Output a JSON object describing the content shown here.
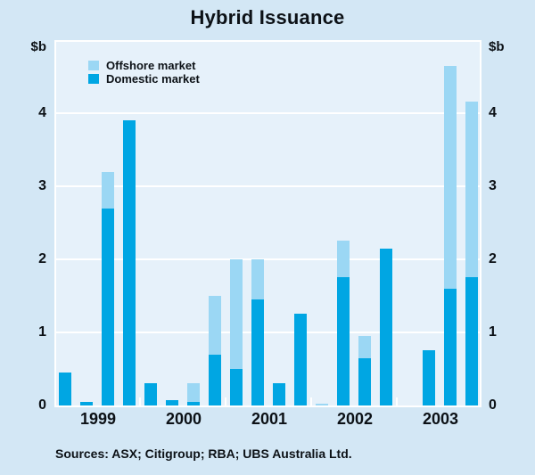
{
  "chart_data": {
    "type": "bar",
    "stacked": true,
    "title": "Hybrid Issuance",
    "unit_label": "$b",
    "ylabel": "$b",
    "xlabel": "",
    "ylim": [
      0,
      4.75
    ],
    "yticks": [
      0,
      1,
      2,
      3,
      4
    ],
    "grid": true,
    "legend_position": "top-left inside plot",
    "x_year_labels": [
      "1999",
      "2000",
      "2001",
      "2002",
      "2003"
    ],
    "categories": [
      "1999 Q1",
      "1999 Q2",
      "1999 Q3",
      "1999 Q4",
      "2000 Q1",
      "2000 Q2",
      "2000 Q3",
      "2000 Q4",
      "2001 Q1",
      "2001 Q2",
      "2001 Q3",
      "2001 Q4",
      "2002 Q1",
      "2002 Q2",
      "2002 Q3",
      "2002 Q4",
      "2003 Q1",
      "2003 Q2",
      "2003 Q3",
      "2003 Q4"
    ],
    "series": [
      {
        "name": "Offshore market",
        "color": "#9bd7f4",
        "values": [
          0,
          0,
          0.5,
          0,
          0,
          0,
          0.25,
          0.8,
          1.5,
          0.55,
          0,
          0,
          0.03,
          0.5,
          0.3,
          0,
          0,
          0,
          3.05,
          2.4
        ]
      },
      {
        "name": "Domestic market",
        "color": "#00a6e3",
        "values": [
          0.45,
          0.05,
          2.7,
          3.9,
          0.3,
          0.07,
          0.05,
          0.7,
          0.5,
          1.45,
          0.3,
          1.25,
          0,
          1.75,
          0.65,
          2.15,
          0,
          0.75,
          1.6,
          1.75
        ]
      }
    ],
    "source": "Sources: ASX; Citigroup; RBA; UBS Australia Ltd."
  },
  "colors": {
    "outer_background": "#d3e7f5",
    "plot_background": "#e6f1fa",
    "gridline": "#ffffff",
    "text": "#0c1116"
  }
}
